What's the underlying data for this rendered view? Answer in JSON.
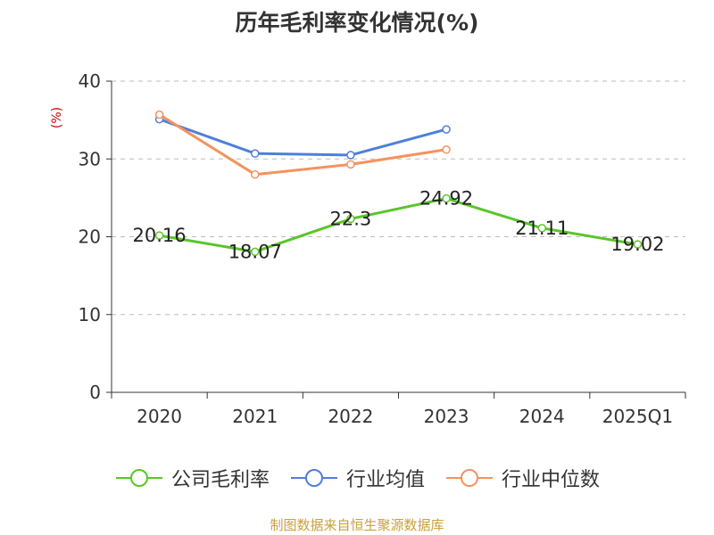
{
  "title": "历年毛利率变化情况(%)",
  "y_unit": "(%)",
  "source": "制图数据来自恒生聚源数据库",
  "chart_data": {
    "type": "line",
    "categories": [
      "2020",
      "2021",
      "2022",
      "2023",
      "2024",
      "2025Q1"
    ],
    "ylim": [
      0,
      40
    ],
    "yticks": [
      0,
      10,
      20,
      30,
      40
    ],
    "grid": true,
    "legend_position": "bottom",
    "series": [
      {
        "name": "公司毛利率",
        "color": "#5ac52a",
        "values": [
          20.16,
          18.07,
          22.3,
          24.92,
          21.11,
          19.02
        ],
        "labels": [
          "20.16",
          "18.07",
          "22.3",
          "24.92",
          "21.11",
          "19.02"
        ]
      },
      {
        "name": "行业均值",
        "color": "#4f7fd9",
        "values": [
          35.1,
          30.7,
          30.5,
          33.8,
          null,
          null
        ]
      },
      {
        "name": "行业中位数",
        "color": "#f5925e",
        "values": [
          35.7,
          28.0,
          29.3,
          31.2,
          null,
          null
        ]
      }
    ]
  }
}
